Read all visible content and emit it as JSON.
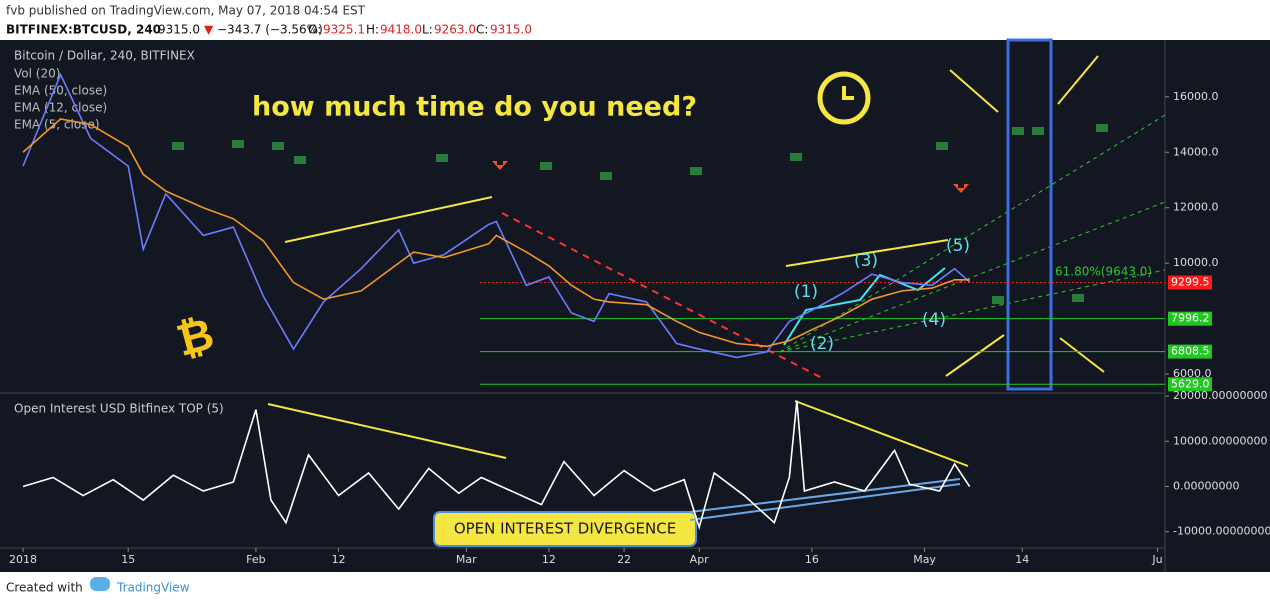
{
  "header": {
    "publisher": "fvb published on TradingView.com, May 07, 2018 04:54 EST",
    "symbol": "BITFINEX:BTCUSD, 240",
    "last": "9315.0",
    "arrow": "▼",
    "change": "−343.7 (−3.56%)",
    "open_label": "O:",
    "open": "9325.1",
    "high_label": "H:",
    "high": "9418.0",
    "low_label": "L:",
    "low": "9263.0",
    "close_label": "C:",
    "close": "9315.0"
  },
  "footer": {
    "created": "Created with",
    "brand": "TradingView"
  },
  "chart_data": [
    {
      "type": "line",
      "title": "Bitcoin / Dollar, 240, BITFINEX",
      "indicators": [
        "Vol (20)",
        "EMA (50, close)",
        "EMA (12, close)",
        "EMA (5, close)"
      ],
      "annotations": [
        "how much time do you need?",
        "(1)",
        "(2)",
        "(3)",
        "(4)",
        "(5)",
        "61.80%(9643.0)"
      ],
      "xlim": [
        "2017-12-30",
        "2018-06-02"
      ],
      "ylim": [
        5315,
        18050
      ],
      "yticks": [
        {
          "value": 6000,
          "label": "6000.0"
        },
        {
          "value": 10000,
          "label": "10000.0"
        },
        {
          "value": 12000,
          "label": "12000.0"
        },
        {
          "value": 14000,
          "label": "14000.0"
        },
        {
          "value": 16000,
          "label": "16000.0"
        }
      ],
      "price_lines": [
        {
          "value": 9299.5,
          "label": "9299.5",
          "color": "#ff1a1a"
        },
        {
          "value": 7996.2,
          "label": "7996.2",
          "color": "#22c722"
        },
        {
          "value": 6808.5,
          "label": "6808.5",
          "color": "#22c722"
        },
        {
          "value": 5629.0,
          "label": "5629.0",
          "color": "#22c722"
        }
      ],
      "x": [
        "2018-01-01",
        "2018-01-06",
        "2018-01-10",
        "2018-01-15",
        "2018-01-17",
        "2018-01-20",
        "2018-01-25",
        "2018-01-29",
        "2018-02-02",
        "2018-02-06",
        "2018-02-10",
        "2018-02-15",
        "2018-02-20",
        "2018-02-22",
        "2018-02-26",
        "2018-03-04",
        "2018-03-05",
        "2018-03-09",
        "2018-03-12",
        "2018-03-15",
        "2018-03-18",
        "2018-03-20",
        "2018-03-25",
        "2018-03-29",
        "2018-04-01",
        "2018-04-06",
        "2018-04-10",
        "2018-04-13",
        "2018-04-16",
        "2018-04-20",
        "2018-04-24",
        "2018-04-28",
        "2018-05-02",
        "2018-05-05",
        "2018-05-07"
      ],
      "series": [
        {
          "name": "EMA (5, close)",
          "color": "#6a7cff",
          "values": [
            13500,
            16800,
            14500,
            13500,
            10500,
            12500,
            11000,
            11300,
            8800,
            6900,
            8600,
            9800,
            11200,
            10000,
            10300,
            11400,
            11500,
            9200,
            9500,
            8200,
            7900,
            8900,
            8600,
            7100,
            6900,
            6600,
            6800,
            7900,
            8300,
            8900,
            9600,
            9300,
            9200,
            9800,
            9315
          ]
        },
        {
          "name": "EMA (50, close)",
          "color": "#f5962a",
          "values": [
            14000,
            15200,
            15000,
            14200,
            13200,
            12600,
            12000,
            11600,
            10800,
            9300,
            8700,
            9000,
            10000,
            10400,
            10200,
            10700,
            11000,
            10400,
            9900,
            9200,
            8700,
            8600,
            8500,
            7900,
            7500,
            7100,
            7000,
            7200,
            7600,
            8100,
            8700,
            9000,
            9100,
            9400,
            9400
          ]
        }
      ]
    },
    {
      "type": "line",
      "title": "Open Interest USD Bitfinex TOP (5)",
      "annotations": [
        "OPEN INTEREST DIVERGENCE"
      ],
      "xlim": [
        "2017-12-30",
        "2018-06-02"
      ],
      "ylim": [
        -13600,
        20680
      ],
      "yticks": [
        {
          "value": 20000,
          "label": "20000.00000000"
        },
        {
          "value": 10000,
          "label": "10000.00000000"
        },
        {
          "value": 0,
          "label": "0.00000000"
        },
        {
          "value": -10000,
          "label": "-10000.00000000"
        }
      ],
      "xticks": [
        {
          "value": "2018-01-01",
          "label": "2018"
        },
        {
          "value": "2018-01-15",
          "label": "15"
        },
        {
          "value": "2018-02-01",
          "label": "Feb"
        },
        {
          "value": "2018-02-12",
          "label": "12"
        },
        {
          "value": "2018-03-01",
          "label": "Mar"
        },
        {
          "value": "2018-03-12",
          "label": "12"
        },
        {
          "value": "2018-03-22",
          "label": "22"
        },
        {
          "value": "2018-04-01",
          "label": "Apr"
        },
        {
          "value": "2018-04-16",
          "label": "16"
        },
        {
          "value": "2018-05-01",
          "label": "May"
        },
        {
          "value": "2018-05-14",
          "label": "14"
        },
        {
          "value": "2018-06-01",
          "label": "Ju"
        }
      ],
      "x": [
        "2018-01-01",
        "2018-01-05",
        "2018-01-09",
        "2018-01-13",
        "2018-01-17",
        "2018-01-21",
        "2018-01-25",
        "2018-01-29",
        "2018-02-01",
        "2018-02-03",
        "2018-02-05",
        "2018-02-08",
        "2018-02-12",
        "2018-02-16",
        "2018-02-20",
        "2018-02-24",
        "2018-02-28",
        "2018-03-03",
        "2018-03-07",
        "2018-03-11",
        "2018-03-14",
        "2018-03-18",
        "2018-03-22",
        "2018-03-26",
        "2018-03-30",
        "2018-04-01",
        "2018-04-03",
        "2018-04-07",
        "2018-04-11",
        "2018-04-13",
        "2018-04-14",
        "2018-04-15",
        "2018-04-19",
        "2018-04-23",
        "2018-04-27",
        "2018-04-29",
        "2018-05-03",
        "2018-05-05",
        "2018-05-07"
      ],
      "series": [
        {
          "name": "Open Interest USD Bitfinex TOP (5)",
          "color": "#ffffff",
          "values": [
            0,
            2000,
            -2000,
            1500,
            -3000,
            2500,
            -1000,
            1000,
            17000,
            -3000,
            -8000,
            7000,
            -2000,
            3000,
            -5000,
            4000,
            -1500,
            2000,
            -1000,
            -4000,
            5500,
            -2000,
            3500,
            -1000,
            1500,
            -9000,
            3000,
            -2000,
            -8000,
            2000,
            19000,
            -1000,
            1000,
            -1000,
            8000,
            500,
            -1000,
            5000,
            0
          ]
        }
      ]
    }
  ]
}
